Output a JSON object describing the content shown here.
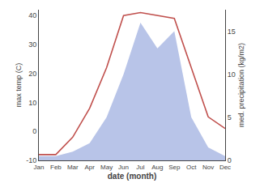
{
  "chart_data": {
    "type": "line",
    "categories": [
      "Jan",
      "Feb",
      "Mar",
      "Apr",
      "May",
      "Jun",
      "Jul",
      "Aug",
      "Sep",
      "Oct",
      "Nov",
      "Dec"
    ],
    "series": [
      {
        "type": "area",
        "axis": "y2",
        "color": "#b8c4e8",
        "values": [
          0.5,
          0.5,
          1,
          2,
          5,
          10,
          16,
          13,
          15,
          5,
          1.5,
          0.5
        ]
      },
      {
        "type": "line",
        "color": "#c0504d",
        "values": [
          -8,
          -8,
          -2,
          8,
          22,
          40,
          41,
          40,
          39,
          22,
          5,
          1
        ]
      }
    ],
    "xlabel": "date (month)",
    "ylabel": "max temp (C)",
    "y2label": "med. precipitation (kg/m2)",
    "ylim": [
      -10,
      42
    ],
    "yticks": [
      -10,
      0,
      10,
      20,
      30,
      40
    ],
    "y2lim": [
      0,
      17.5
    ],
    "y2ticks": [
      0,
      5,
      10,
      15
    ],
    "grid": false
  }
}
